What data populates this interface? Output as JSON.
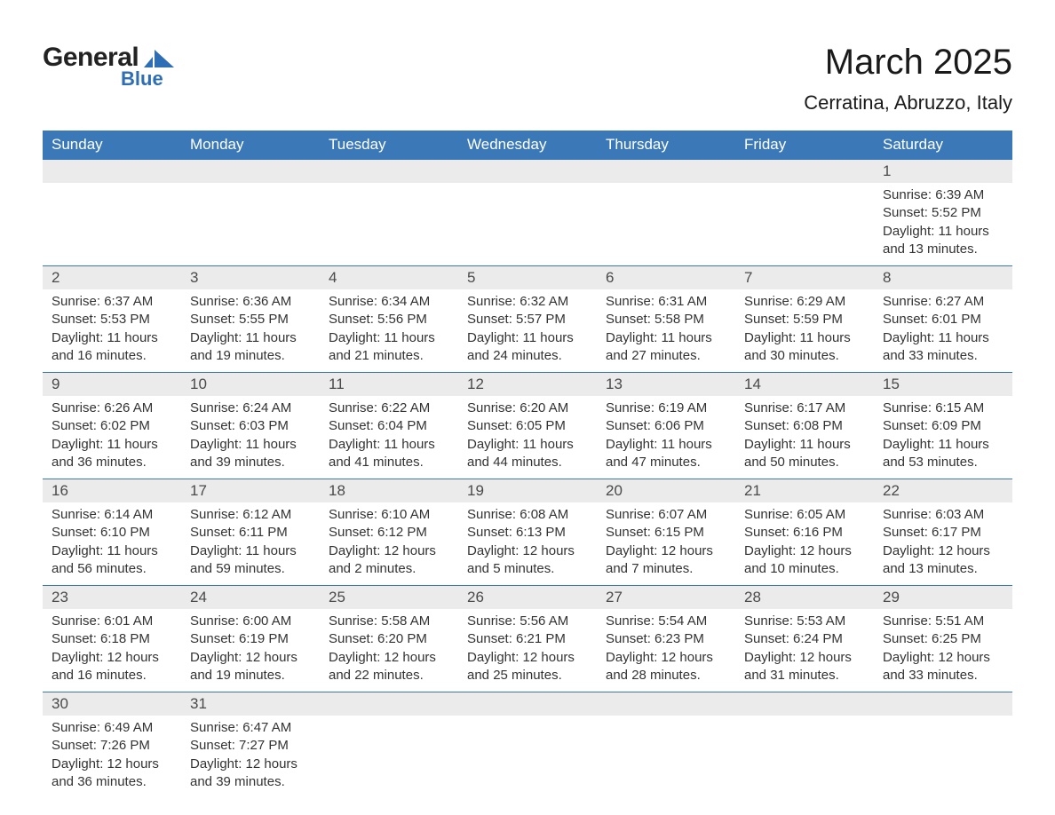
{
  "brand": {
    "text_general": "General",
    "text_blue": "Blue",
    "mark_color": "#2e6eb5"
  },
  "header": {
    "month_title": "March 2025",
    "location": "Cerratina, Abruzzo, Italy"
  },
  "style": {
    "header_bg": "#3a78b8",
    "header_text": "#ffffff",
    "daynum_bg": "#ebebeb",
    "row_border": "#3a78b8",
    "body_text": "#333333",
    "title_text": "#1a1a1a",
    "background": "#ffffff",
    "month_title_fontsize": 40,
    "location_fontsize": 22,
    "header_fontsize": 17,
    "daynum_fontsize": 17,
    "body_fontsize": 15
  },
  "weekdays": [
    "Sunday",
    "Monday",
    "Tuesday",
    "Wednesday",
    "Thursday",
    "Friday",
    "Saturday"
  ],
  "labels": {
    "sunrise": "Sunrise:",
    "sunset": "Sunset:",
    "daylight": "Daylight:"
  },
  "first_day_column": 6,
  "days": [
    {
      "n": 1,
      "sunrise": "6:39 AM",
      "sunset": "5:52 PM",
      "daylight": "11 hours and 13 minutes."
    },
    {
      "n": 2,
      "sunrise": "6:37 AM",
      "sunset": "5:53 PM",
      "daylight": "11 hours and 16 minutes."
    },
    {
      "n": 3,
      "sunrise": "6:36 AM",
      "sunset": "5:55 PM",
      "daylight": "11 hours and 19 minutes."
    },
    {
      "n": 4,
      "sunrise": "6:34 AM",
      "sunset": "5:56 PM",
      "daylight": "11 hours and 21 minutes."
    },
    {
      "n": 5,
      "sunrise": "6:32 AM",
      "sunset": "5:57 PM",
      "daylight": "11 hours and 24 minutes."
    },
    {
      "n": 6,
      "sunrise": "6:31 AM",
      "sunset": "5:58 PM",
      "daylight": "11 hours and 27 minutes."
    },
    {
      "n": 7,
      "sunrise": "6:29 AM",
      "sunset": "5:59 PM",
      "daylight": "11 hours and 30 minutes."
    },
    {
      "n": 8,
      "sunrise": "6:27 AM",
      "sunset": "6:01 PM",
      "daylight": "11 hours and 33 minutes."
    },
    {
      "n": 9,
      "sunrise": "6:26 AM",
      "sunset": "6:02 PM",
      "daylight": "11 hours and 36 minutes."
    },
    {
      "n": 10,
      "sunrise": "6:24 AM",
      "sunset": "6:03 PM",
      "daylight": "11 hours and 39 minutes."
    },
    {
      "n": 11,
      "sunrise": "6:22 AM",
      "sunset": "6:04 PM",
      "daylight": "11 hours and 41 minutes."
    },
    {
      "n": 12,
      "sunrise": "6:20 AM",
      "sunset": "6:05 PM",
      "daylight": "11 hours and 44 minutes."
    },
    {
      "n": 13,
      "sunrise": "6:19 AM",
      "sunset": "6:06 PM",
      "daylight": "11 hours and 47 minutes."
    },
    {
      "n": 14,
      "sunrise": "6:17 AM",
      "sunset": "6:08 PM",
      "daylight": "11 hours and 50 minutes."
    },
    {
      "n": 15,
      "sunrise": "6:15 AM",
      "sunset": "6:09 PM",
      "daylight": "11 hours and 53 minutes."
    },
    {
      "n": 16,
      "sunrise": "6:14 AM",
      "sunset": "6:10 PM",
      "daylight": "11 hours and 56 minutes."
    },
    {
      "n": 17,
      "sunrise": "6:12 AM",
      "sunset": "6:11 PM",
      "daylight": "11 hours and 59 minutes."
    },
    {
      "n": 18,
      "sunrise": "6:10 AM",
      "sunset": "6:12 PM",
      "daylight": "12 hours and 2 minutes."
    },
    {
      "n": 19,
      "sunrise": "6:08 AM",
      "sunset": "6:13 PM",
      "daylight": "12 hours and 5 minutes."
    },
    {
      "n": 20,
      "sunrise": "6:07 AM",
      "sunset": "6:15 PM",
      "daylight": "12 hours and 7 minutes."
    },
    {
      "n": 21,
      "sunrise": "6:05 AM",
      "sunset": "6:16 PM",
      "daylight": "12 hours and 10 minutes."
    },
    {
      "n": 22,
      "sunrise": "6:03 AM",
      "sunset": "6:17 PM",
      "daylight": "12 hours and 13 minutes."
    },
    {
      "n": 23,
      "sunrise": "6:01 AM",
      "sunset": "6:18 PM",
      "daylight": "12 hours and 16 minutes."
    },
    {
      "n": 24,
      "sunrise": "6:00 AM",
      "sunset": "6:19 PM",
      "daylight": "12 hours and 19 minutes."
    },
    {
      "n": 25,
      "sunrise": "5:58 AM",
      "sunset": "6:20 PM",
      "daylight": "12 hours and 22 minutes."
    },
    {
      "n": 26,
      "sunrise": "5:56 AM",
      "sunset": "6:21 PM",
      "daylight": "12 hours and 25 minutes."
    },
    {
      "n": 27,
      "sunrise": "5:54 AM",
      "sunset": "6:23 PM",
      "daylight": "12 hours and 28 minutes."
    },
    {
      "n": 28,
      "sunrise": "5:53 AM",
      "sunset": "6:24 PM",
      "daylight": "12 hours and 31 minutes."
    },
    {
      "n": 29,
      "sunrise": "5:51 AM",
      "sunset": "6:25 PM",
      "daylight": "12 hours and 33 minutes."
    },
    {
      "n": 30,
      "sunrise": "6:49 AM",
      "sunset": "7:26 PM",
      "daylight": "12 hours and 36 minutes."
    },
    {
      "n": 31,
      "sunrise": "6:47 AM",
      "sunset": "7:27 PM",
      "daylight": "12 hours and 39 minutes."
    }
  ]
}
